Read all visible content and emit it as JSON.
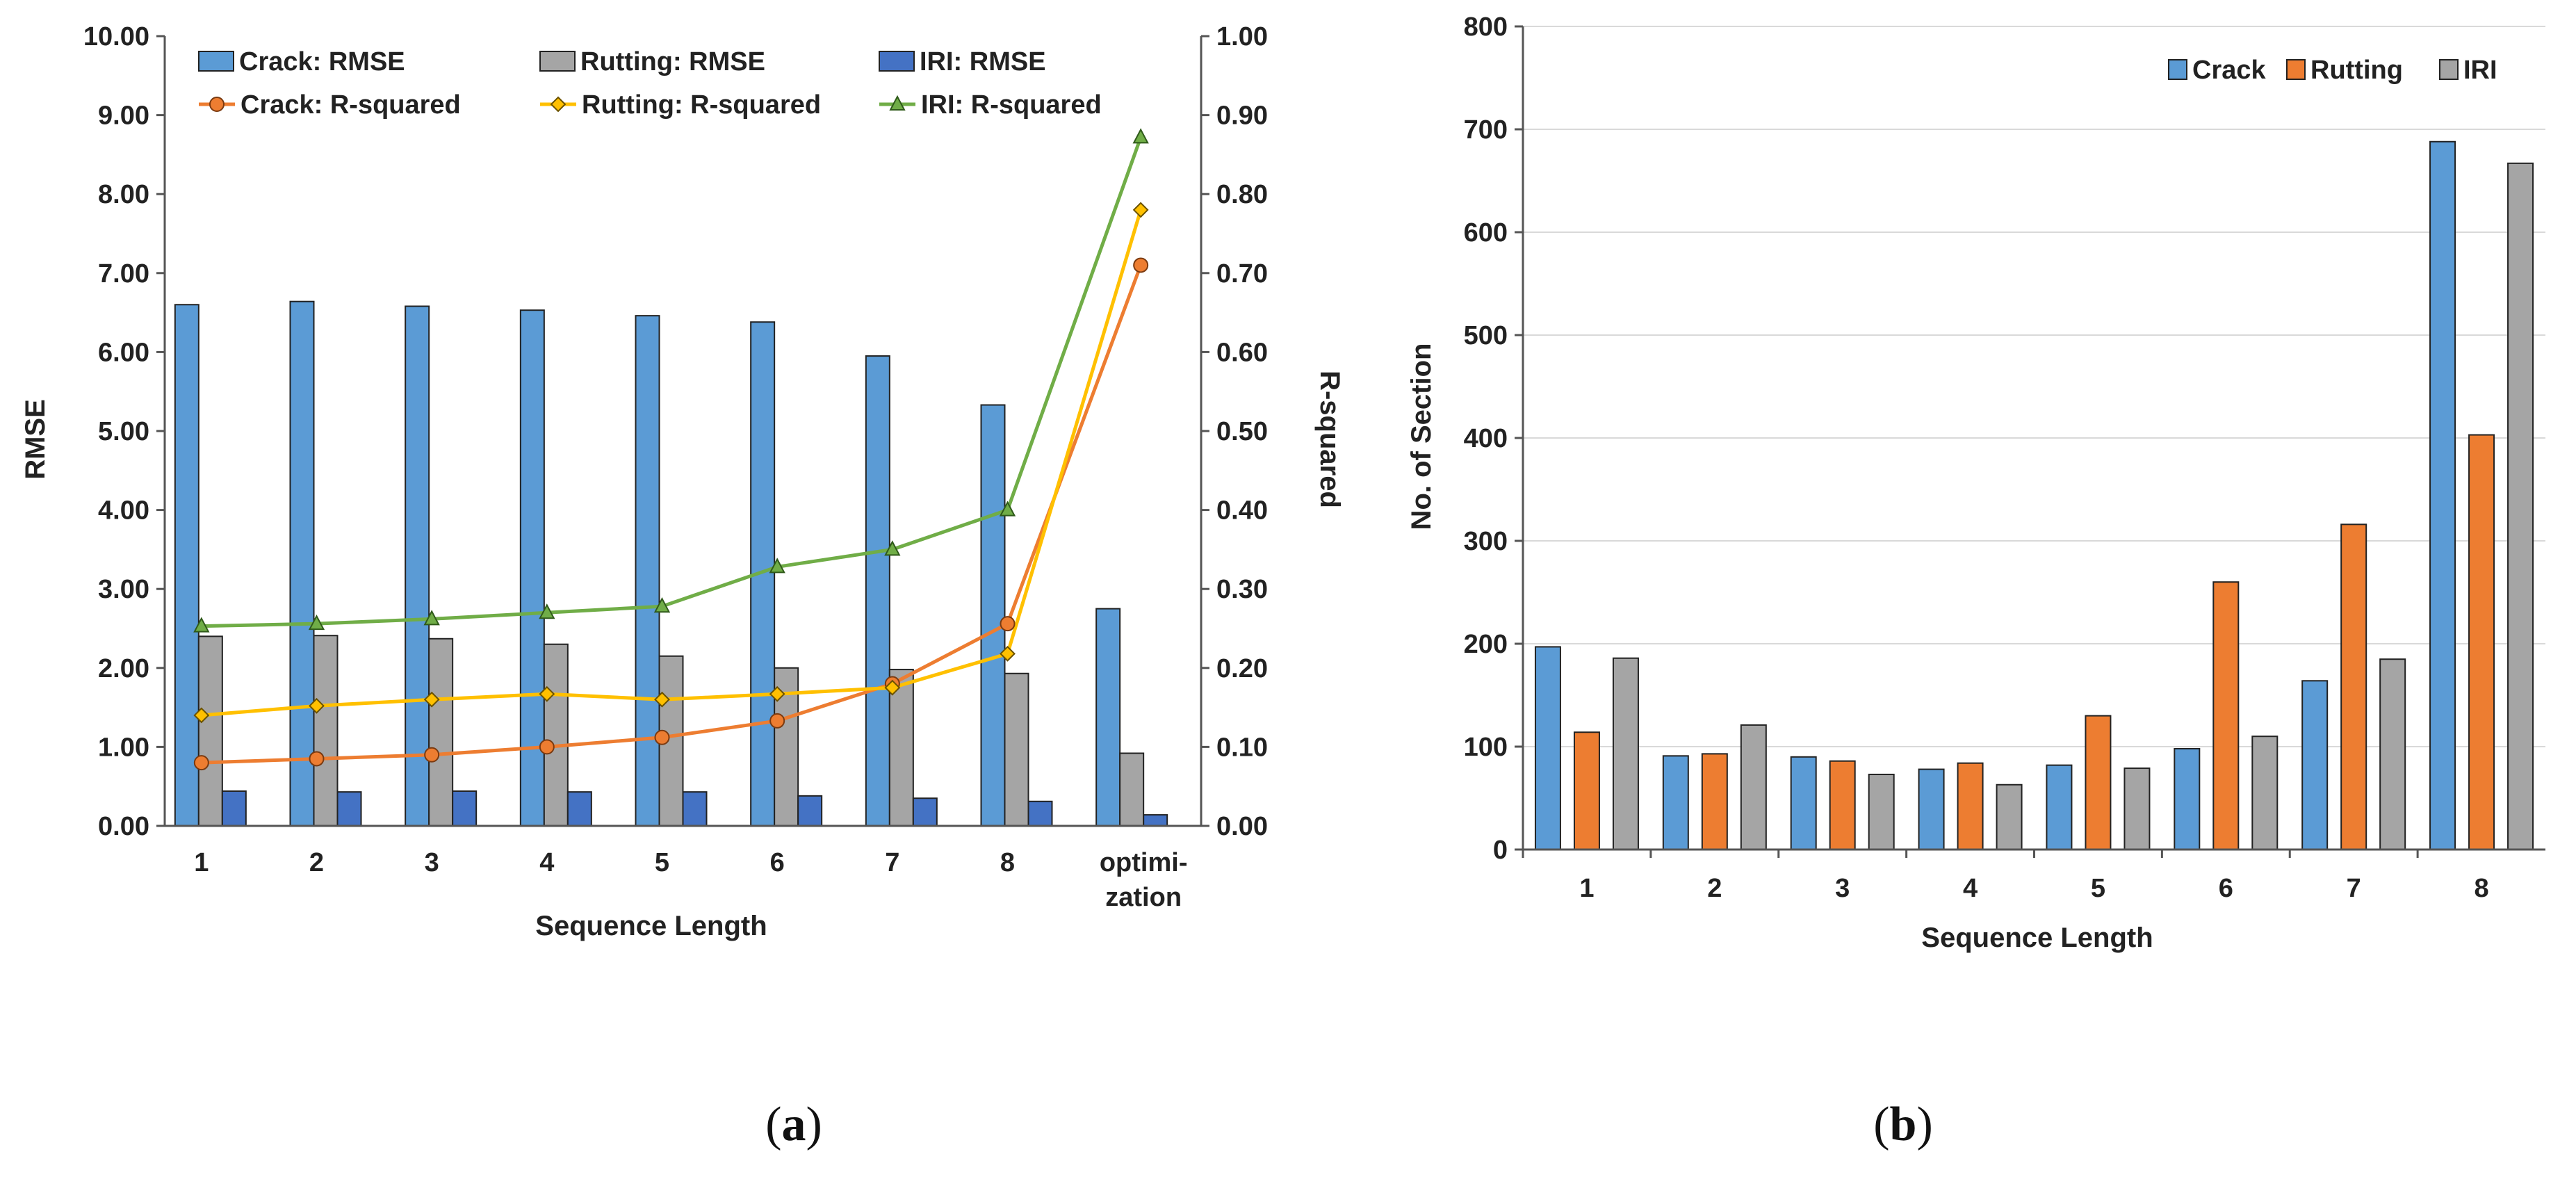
{
  "panels": {
    "a": {
      "label_open": "(",
      "label_letter": "a",
      "label_close": ")"
    },
    "b": {
      "label_open": "(",
      "label_letter": "b",
      "label_close": ")"
    }
  },
  "colors": {
    "crack_blue": "#5b9bd5",
    "rutting_gray": "#a5a5a5",
    "iri_navy": "#4472c4",
    "crack_orange": "#ed7d31",
    "rutting_yellow": "#ffc000",
    "iri_green": "#70ad47",
    "rutting_orange_bar": "#ed7d31"
  },
  "chart_data": [
    {
      "id": "a",
      "type": "bar",
      "xlabel": "Sequence Length",
      "ylabel": "RMSE",
      "y2label": "R-squared",
      "categories": [
        "1",
        "2",
        "3",
        "4",
        "5",
        "6",
        "7",
        "8",
        "optimi-|zation"
      ],
      "ylim": [
        0,
        10
      ],
      "yticks": [
        "0.00",
        "1.00",
        "2.00",
        "3.00",
        "4.00",
        "5.00",
        "6.00",
        "7.00",
        "8.00",
        "9.00",
        "10.00"
      ],
      "y2lim": [
        0,
        1
      ],
      "y2ticks": [
        "0.00",
        "0.10",
        "0.20",
        "0.30",
        "0.40",
        "0.50",
        "0.60",
        "0.70",
        "0.80",
        "0.90",
        "1.00"
      ],
      "legend_position": "top",
      "bar_series": [
        {
          "name": "Crack: RMSE",
          "color": "#5b9bd5",
          "values": [
            6.6,
            6.64,
            6.58,
            6.53,
            6.46,
            6.38,
            5.95,
            5.33,
            2.75
          ]
        },
        {
          "name": "Rutting: RMSE",
          "color": "#a5a5a5",
          "values": [
            2.4,
            2.41,
            2.37,
            2.3,
            2.15,
            2.0,
            1.98,
            1.93,
            0.92
          ]
        },
        {
          "name": "IRI: RMSE",
          "color": "#4472c4",
          "values": [
            0.44,
            0.43,
            0.44,
            0.43,
            0.43,
            0.38,
            0.35,
            0.31,
            0.14
          ]
        }
      ],
      "line_series": [
        {
          "name": "Crack: R-squared",
          "color": "#ed7d31",
          "marker": "circle",
          "values": [
            0.08,
            0.085,
            0.09,
            0.1,
            0.112,
            0.133,
            0.18,
            0.256,
            0.71
          ]
        },
        {
          "name": "Rutting: R-squared",
          "color": "#ffc000",
          "marker": "diamond",
          "values": [
            0.14,
            0.152,
            0.16,
            0.167,
            0.16,
            0.167,
            0.175,
            0.218,
            0.78
          ]
        },
        {
          "name": "IRI: R-squared",
          "color": "#70ad47",
          "marker": "triangle",
          "values": [
            0.253,
            0.256,
            0.262,
            0.27,
            0.278,
            0.328,
            0.35,
            0.4,
            0.872
          ]
        }
      ]
    },
    {
      "id": "b",
      "type": "bar",
      "xlabel": "Sequence Length",
      "ylabel": "No. of Section",
      "categories": [
        "1",
        "2",
        "3",
        "4",
        "5",
        "6",
        "7",
        "8"
      ],
      "ylim": [
        0,
        800
      ],
      "yticks": [
        "0",
        "100",
        "200",
        "300",
        "400",
        "500",
        "600",
        "700",
        "800"
      ],
      "grid": true,
      "legend_position": "top-right",
      "series": [
        {
          "name": "Crack",
          "color": "#5b9bd5",
          "values": [
            197,
            91,
            90,
            78,
            82,
            98,
            164,
            688
          ]
        },
        {
          "name": "Rutting",
          "color": "#ed7d31",
          "values": [
            114,
            93,
            86,
            84,
            130,
            260,
            316,
            403
          ]
        },
        {
          "name": "IRI",
          "color": "#a5a5a5",
          "values": [
            186,
            121,
            73,
            63,
            79,
            110,
            185,
            667
          ]
        }
      ]
    }
  ]
}
